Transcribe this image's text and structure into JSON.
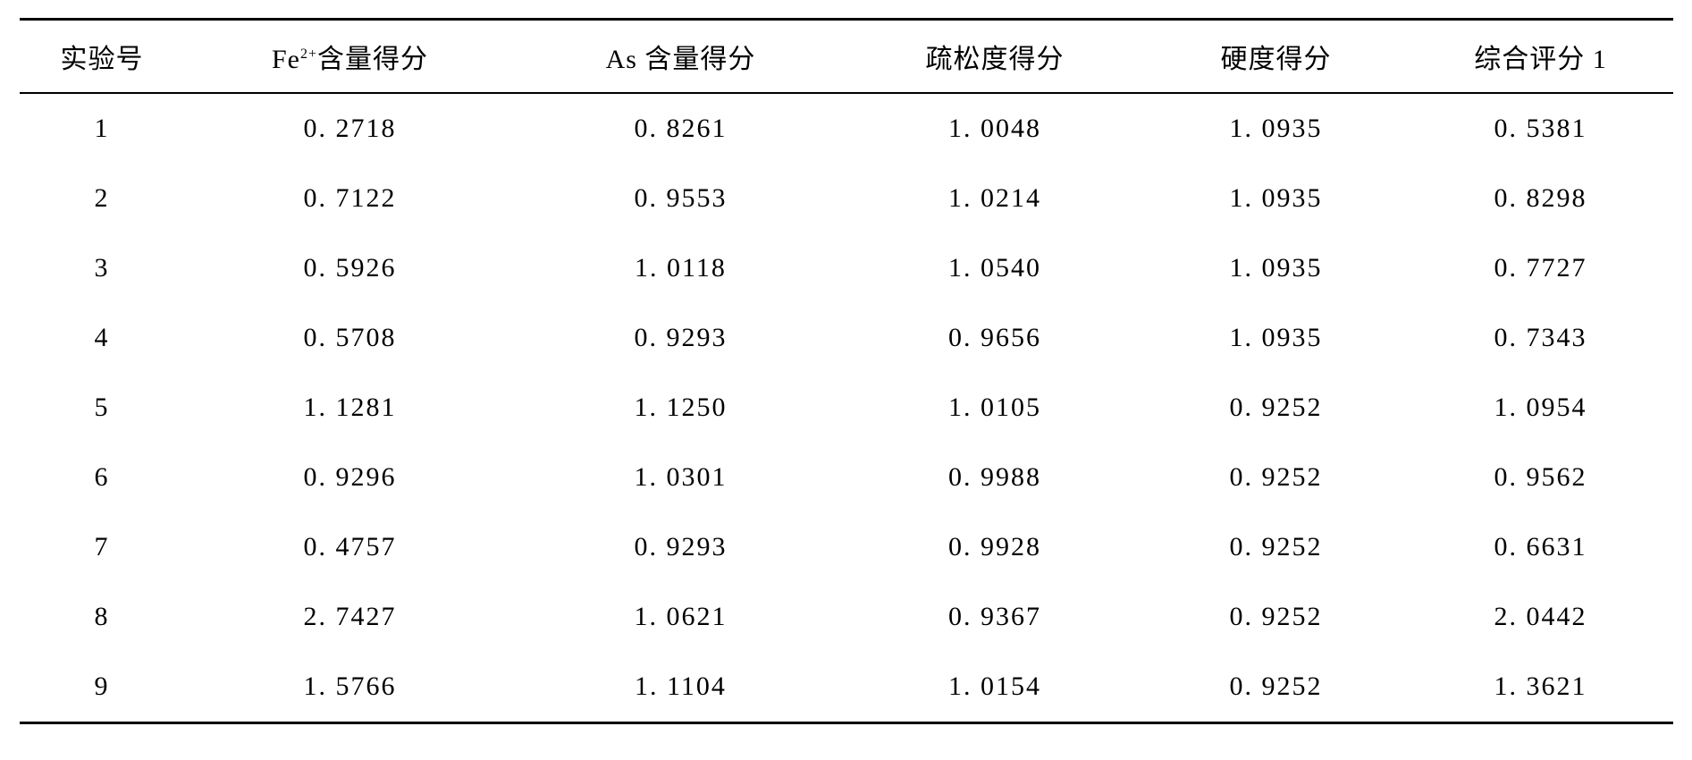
{
  "table": {
    "type": "table",
    "columns": [
      {
        "label": "实验号",
        "width": "10%",
        "align": "center"
      },
      {
        "label": "Fe²⁺含量得分",
        "width": "20%",
        "align": "center",
        "has_superscript": true
      },
      {
        "label": "As 含量得分",
        "width": "20%",
        "align": "center"
      },
      {
        "label": "疏松度得分",
        "width": "18%",
        "align": "center"
      },
      {
        "label": "硬度得分",
        "width": "16%",
        "align": "center"
      },
      {
        "label": "综合评分 1",
        "width": "16%",
        "align": "center"
      }
    ],
    "header_labels": {
      "exp_no": "实验号",
      "fe_prefix": "Fe",
      "fe_superscript": "2+",
      "fe_suffix": "含量得分",
      "as_score": "As 含量得分",
      "looseness": "疏松度得分",
      "hardness": "硬度得分",
      "composite": "综合评分 1"
    },
    "rows": [
      {
        "exp_no": "1",
        "fe": "0. 2718",
        "as": "0. 8261",
        "looseness": "1. 0048",
        "hardness": "1. 0935",
        "composite": "0. 5381"
      },
      {
        "exp_no": "2",
        "fe": "0. 7122",
        "as": "0. 9553",
        "looseness": "1. 0214",
        "hardness": "1. 0935",
        "composite": "0. 8298"
      },
      {
        "exp_no": "3",
        "fe": "0. 5926",
        "as": "1. 0118",
        "looseness": "1. 0540",
        "hardness": "1. 0935",
        "composite": "0. 7727"
      },
      {
        "exp_no": "4",
        "fe": "0. 5708",
        "as": "0. 9293",
        "looseness": "0. 9656",
        "hardness": "1. 0935",
        "composite": "0. 7343"
      },
      {
        "exp_no": "5",
        "fe": "1. 1281",
        "as": "1. 1250",
        "looseness": "1. 0105",
        "hardness": "0. 9252",
        "composite": "1. 0954"
      },
      {
        "exp_no": "6",
        "fe": "0. 9296",
        "as": "1. 0301",
        "looseness": "0. 9988",
        "hardness": "0. 9252",
        "composite": "0. 9562"
      },
      {
        "exp_no": "7",
        "fe": "0. 4757",
        "as": "0. 9293",
        "looseness": "0. 9928",
        "hardness": "0. 9252",
        "composite": "0. 6631"
      },
      {
        "exp_no": "8",
        "fe": "2. 7427",
        "as": "1. 0621",
        "looseness": "0. 9367",
        "hardness": "0. 9252",
        "composite": "2. 0442"
      },
      {
        "exp_no": "9",
        "fe": "1. 5766",
        "as": "1. 1104",
        "looseness": "1. 0154",
        "hardness": "0. 9252",
        "composite": "1. 3621"
      }
    ],
    "styling": {
      "border_top_width": 3,
      "border_bottom_width": 3,
      "header_border_bottom_width": 2,
      "border_color": "#000000",
      "background_color": "#ffffff",
      "text_color": "#000000",
      "header_fontsize": 30,
      "cell_fontsize": 30,
      "font_family": "SimSun",
      "cell_padding_vertical": 22,
      "header_padding_vertical": 18,
      "letter_spacing": 2
    }
  }
}
